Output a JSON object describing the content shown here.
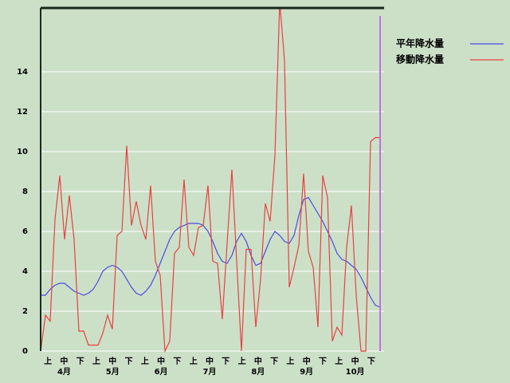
{
  "chart_data": {
    "type": "line",
    "ylim": [
      0,
      17.2
    ],
    "yticks": [
      0,
      2,
      4,
      6,
      8,
      10,
      12,
      14
    ],
    "grid": true,
    "dekad_labels": [
      "上",
      "中",
      "下",
      "上",
      "中",
      "下",
      "上",
      "中",
      "下",
      "上",
      "中",
      "下",
      "上",
      "中",
      "下",
      "上",
      "中",
      "下",
      "上",
      "中",
      "下"
    ],
    "month_labels": [
      "4月",
      "5月",
      "6月",
      "7月",
      "8月",
      "9月",
      "10月"
    ],
    "legend": "right",
    "series": [
      {
        "name": "平年降水量",
        "color": "#4a4ae0",
        "values": [
          2.8,
          2.8,
          3.1,
          3.3,
          3.4,
          3.4,
          3.2,
          3.0,
          2.9,
          2.8,
          2.9,
          3.1,
          3.5,
          4.0,
          4.2,
          4.3,
          4.2,
          4.0,
          3.6,
          3.2,
          2.9,
          2.8,
          3.0,
          3.3,
          3.8,
          4.4,
          5.0,
          5.6,
          6.0,
          6.2,
          6.3,
          6.4,
          6.4,
          6.4,
          6.3,
          6.0,
          5.5,
          4.9,
          4.5,
          4.4,
          4.8,
          5.5,
          5.9,
          5.5,
          4.8,
          4.3,
          4.4,
          5.0,
          5.6,
          6.0,
          5.8,
          5.5,
          5.4,
          5.8,
          6.8,
          7.6,
          7.7,
          7.3,
          6.9,
          6.5,
          6.0,
          5.5,
          4.9,
          4.6,
          4.5,
          4.3,
          4.1,
          3.7,
          3.2,
          2.7,
          2.3,
          2.2
        ]
      },
      {
        "name": "移動降水量",
        "color": "#e84040",
        "values": [
          0,
          1.8,
          1.5,
          6.6,
          8.8,
          5.6,
          7.8,
          5.6,
          1.0,
          1.0,
          0.3,
          0.3,
          0.3,
          0.9,
          1.8,
          1.1,
          5.8,
          6.0,
          10.3,
          6.3,
          7.5,
          6.3,
          5.6,
          8.3,
          4.5,
          3.8,
          0,
          0.5,
          4.9,
          5.2,
          8.6,
          5.2,
          4.8,
          6.2,
          6.3,
          8.3,
          4.5,
          4.4,
          1.6,
          5.4,
          9.1,
          4.5,
          0,
          5.1,
          5.1,
          1.2,
          3.6,
          7.4,
          6.5,
          9.8,
          17.5,
          14.6,
          3.2,
          4.2,
          5.3,
          8.9,
          5.0,
          4.2,
          1.2,
          8.8,
          7.7,
          0.5,
          1.2,
          0.8,
          5.2,
          7.3,
          2.8,
          0,
          0,
          10.5,
          10.7,
          10.7
        ]
      }
    ]
  }
}
